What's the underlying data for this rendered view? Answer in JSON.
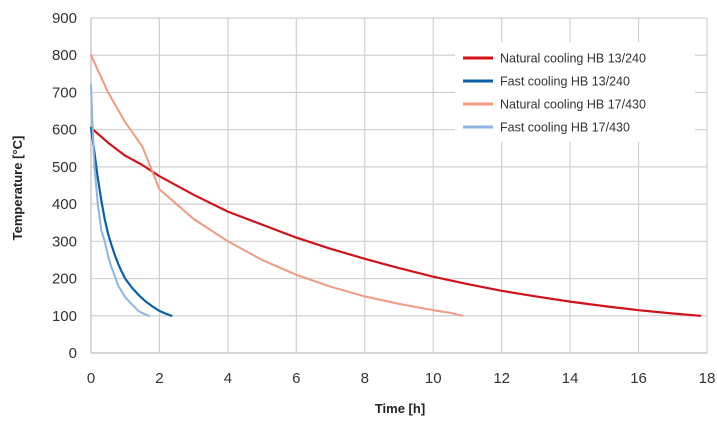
{
  "chart_data": {
    "type": "line",
    "title": "",
    "xlabel": "Time [h]",
    "ylabel": "Temperature [°C]",
    "xlim": [
      0,
      18
    ],
    "ylim": [
      0,
      900
    ],
    "xticks": [
      0,
      2,
      4,
      6,
      8,
      10,
      12,
      14,
      16,
      18
    ],
    "yticks": [
      0,
      100,
      200,
      300,
      400,
      500,
      600,
      700,
      800,
      900
    ],
    "grid": true,
    "legend_position": "top-right",
    "series": [
      {
        "name": "Natural cooling HB 13/240",
        "color": "#d0121b",
        "points": [
          [
            0,
            605
          ],
          [
            0.5,
            565
          ],
          [
            1,
            530
          ],
          [
            1.5,
            505
          ],
          [
            2,
            475
          ],
          [
            3,
            425
          ],
          [
            4,
            380
          ],
          [
            5,
            345
          ],
          [
            6,
            310
          ],
          [
            7,
            280
          ],
          [
            8,
            253
          ],
          [
            9,
            228
          ],
          [
            10,
            205
          ],
          [
            11,
            185
          ],
          [
            12,
            167
          ],
          [
            13,
            152
          ],
          [
            14,
            138
          ],
          [
            15,
            126
          ],
          [
            16,
            115
          ],
          [
            17,
            106
          ],
          [
            17.8,
            100
          ]
        ]
      },
      {
        "name": "Fast cooling HB 13/240",
        "color": "#0a5fa8",
        "points": [
          [
            0,
            605
          ],
          [
            0.1,
            540
          ],
          [
            0.2,
            470
          ],
          [
            0.3,
            410
          ],
          [
            0.4,
            360
          ],
          [
            0.5,
            320
          ],
          [
            0.6,
            290
          ],
          [
            0.7,
            262
          ],
          [
            0.8,
            238
          ],
          [
            0.9,
            218
          ],
          [
            1,
            200
          ],
          [
            1.2,
            175
          ],
          [
            1.4,
            155
          ],
          [
            1.6,
            138
          ],
          [
            1.8,
            125
          ],
          [
            2,
            113
          ],
          [
            2.2,
            105
          ],
          [
            2.35,
            100
          ]
        ]
      },
      {
        "name": "Natural cooling HB 17/430",
        "color": "#f09a82",
        "points": [
          [
            0,
            800
          ],
          [
            0.5,
            700
          ],
          [
            1,
            620
          ],
          [
            1.5,
            555
          ],
          [
            2,
            440
          ],
          [
            3,
            360
          ],
          [
            4,
            300
          ],
          [
            5,
            250
          ],
          [
            6,
            210
          ],
          [
            7,
            178
          ],
          [
            8,
            152
          ],
          [
            9,
            132
          ],
          [
            10,
            115
          ],
          [
            10.5,
            108
          ],
          [
            10.85,
            100
          ]
        ]
      },
      {
        "name": "Fast cooling HB 17/430",
        "color": "#8fb5de",
        "points": [
          [
            0,
            720
          ],
          [
            0.05,
            600
          ],
          [
            0.1,
            500
          ],
          [
            0.2,
            400
          ],
          [
            0.3,
            330
          ],
          [
            0.4,
            300
          ],
          [
            0.5,
            260
          ],
          [
            0.6,
            230
          ],
          [
            0.7,
            205
          ],
          [
            0.8,
            180
          ],
          [
            0.9,
            165
          ],
          [
            1,
            150
          ],
          [
            1.2,
            130
          ],
          [
            1.4,
            112
          ],
          [
            1.6,
            103
          ],
          [
            1.7,
            100
          ]
        ]
      }
    ]
  }
}
